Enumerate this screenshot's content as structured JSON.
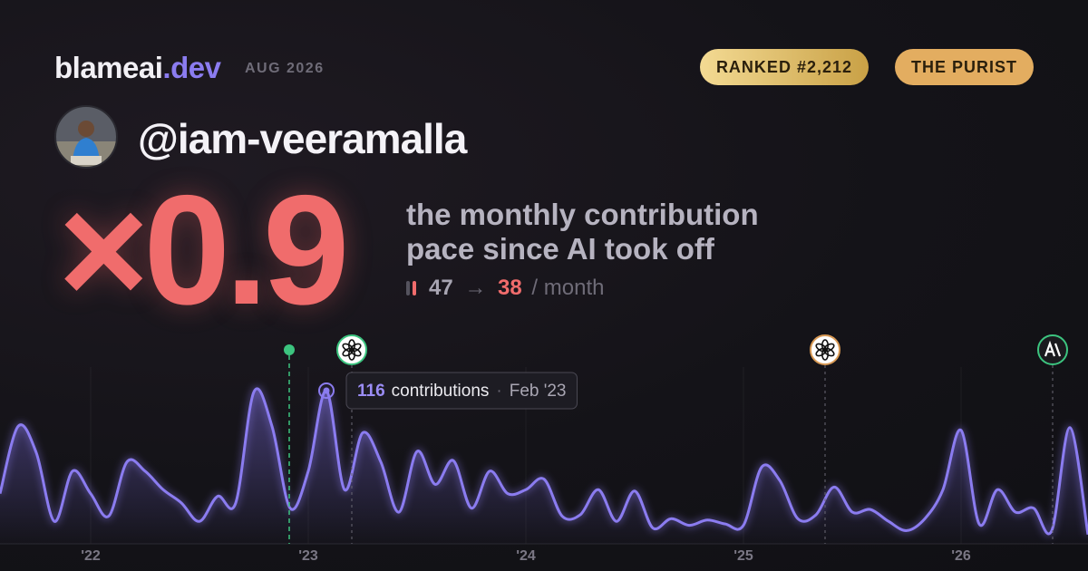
{
  "header": {
    "brand": "blameai",
    "brand_tld": ".dev",
    "period": "AUG 2026",
    "badges": [
      "RANKED #2,212",
      "THE PURIST"
    ],
    "handle": "@iam-veeramalla"
  },
  "headline": {
    "multiplier": "×0.9",
    "caption_lines": [
      "the monthly contribution",
      "pace since AI took off"
    ],
    "before": "47",
    "arrow": "→",
    "after": "38",
    "unit": "/ month"
  },
  "chart_data": {
    "type": "line",
    "categories": [
      null,
      null,
      null,
      null,
      null,
      "'22",
      null,
      null,
      null,
      null,
      null,
      null,
      null,
      null,
      null,
      null,
      null,
      "'23",
      null,
      null,
      null,
      null,
      null,
      null,
      null,
      null,
      null,
      null,
      null,
      "'24",
      null,
      null,
      null,
      null,
      null,
      null,
      null,
      null,
      null,
      null,
      null,
      "'25",
      null,
      null,
      null,
      null,
      null,
      null,
      null,
      null,
      null,
      null,
      null,
      "'26",
      null,
      null,
      null,
      null,
      null,
      null,
      null
    ],
    "series": [
      {
        "name": "contributions",
        "color": "#8b7cf0",
        "values": [
          38,
          89,
          69,
          17,
          55,
          38,
          21,
          62,
          55,
          41,
          31,
          17,
          36,
          31,
          115,
          89,
          27,
          55,
          116,
          41,
          84,
          62,
          24,
          70,
          45,
          63,
          27,
          55,
          38,
          41,
          49,
          21,
          22,
          41,
          17,
          40,
          12,
          19,
          14,
          18,
          15,
          14,
          58,
          48,
          19,
          22,
          43,
          24,
          26,
          17,
          10,
          19,
          41,
          86,
          15,
          41,
          24,
          27,
          10,
          88,
          7
        ]
      }
    ],
    "tooltip": {
      "index": 18,
      "unit": "contributions",
      "label": "Feb '23"
    }
  }
}
